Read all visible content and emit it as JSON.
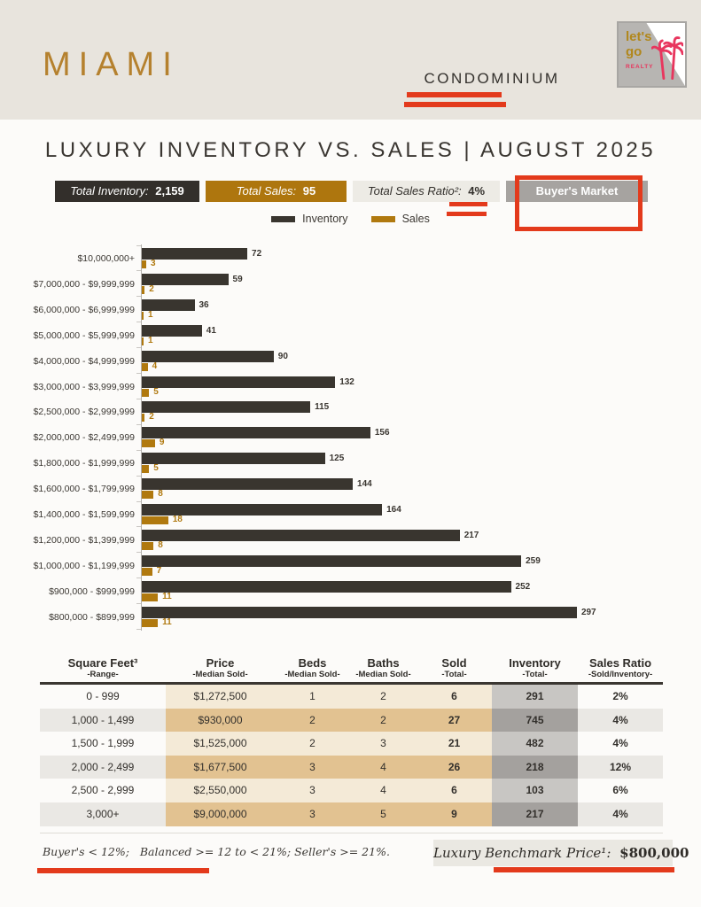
{
  "header": {
    "city": "MIAMI",
    "property_type": "CONDOMINIUM",
    "logo": {
      "line1": "let's",
      "line2": "go",
      "line3": "REALTY"
    }
  },
  "title": "LUXURY INVENTORY VS. SALES | AUGUST 2025",
  "stats": [
    {
      "label": "Total Inventory:",
      "value": "2,159"
    },
    {
      "label": "Total Sales:",
      "value": "95"
    },
    {
      "label": "Total Sales Ratio²:",
      "value": "4%"
    },
    {
      "value": "Buyer's Market"
    }
  ],
  "legend": {
    "inventory": "Inventory",
    "sales": "Sales"
  },
  "chart_data": {
    "type": "bar",
    "orientation": "horizontal",
    "title": "Luxury Inventory vs. Sales | August 2025",
    "xlim": [
      0,
      300
    ],
    "grid": false,
    "legend_position": "top-center",
    "categories": [
      "$10,000,000+",
      "$7,000,000 - $9,999,999",
      "$6,000,000 - $6,999,999",
      "$5,000,000 - $5,999,999",
      "$4,000,000 - $4,999,999",
      "$3,000,000 - $3,999,999",
      "$2,500,000 - $2,999,999",
      "$2,000,000 - $2,499,999",
      "$1,800,000 - $1,999,999",
      "$1,600,000 - $1,799,999",
      "$1,400,000 - $1,599,999",
      "$1,200,000 - $1,399,999",
      "$1,000,000 - $1,199,999",
      "$900,000 - $999,999",
      "$800,000 - $899,999"
    ],
    "series": [
      {
        "name": "Inventory",
        "color": "#39352f",
        "values": [
          72,
          59,
          36,
          41,
          90,
          132,
          115,
          156,
          125,
          144,
          164,
          217,
          259,
          252,
          297
        ]
      },
      {
        "name": "Sales",
        "color": "#b0790f",
        "values": [
          3,
          2,
          1,
          1,
          4,
          5,
          2,
          9,
          5,
          8,
          18,
          8,
          7,
          11,
          11
        ]
      }
    ]
  },
  "table": {
    "columns": [
      {
        "title": "Square Feet³",
        "sub": "-Range-"
      },
      {
        "title": "Price",
        "sub": "-Median Sold-"
      },
      {
        "title": "Beds",
        "sub": "-Median Sold-"
      },
      {
        "title": "Baths",
        "sub": "-Median Sold-"
      },
      {
        "title": "Sold",
        "sub": "-Total-"
      },
      {
        "title": "Inventory",
        "sub": "-Total-"
      },
      {
        "title": "Sales Ratio",
        "sub": "-Sold/Inventory-"
      }
    ],
    "rows": [
      [
        "0 - 999",
        "$1,272,500",
        "1",
        "2",
        "6",
        "291",
        "2%"
      ],
      [
        "1,000 - 1,499",
        "$930,000",
        "2",
        "2",
        "27",
        "745",
        "4%"
      ],
      [
        "1,500 - 1,999",
        "$1,525,000",
        "2",
        "3",
        "21",
        "482",
        "4%"
      ],
      [
        "2,000 - 2,499",
        "$1,677,500",
        "3",
        "4",
        "26",
        "218",
        "12%"
      ],
      [
        "2,500 - 2,999",
        "$2,550,000",
        "3",
        "4",
        "6",
        "103",
        "6%"
      ],
      [
        "3,000+",
        "$9,000,000",
        "3",
        "5",
        "9",
        "217",
        "4%"
      ]
    ]
  },
  "footnotes": {
    "market_note": "Buyer's < 12%;   Balanced >= 12 to < 21%; Seller's >= 21%.",
    "benchmark_label": "Luxury Benchmark Price¹:",
    "benchmark_value": "$800,000"
  },
  "colors": {
    "accent_red": "#e33a1c",
    "inventory_dark": "#39352f",
    "sales_gold": "#b0790f",
    "masthead_beige": "#e8e4dd",
    "stat_gray": "#a6a3a0",
    "stat_light": "#edebe5",
    "table_tan_light": "#f4ead7",
    "table_tan_dark": "#e2c291",
    "table_gray_light": "#c8c6c3",
    "table_gray_dark": "#a4a19e",
    "logo_gold": "#b1871c",
    "logo_pink": "#e8365e"
  }
}
